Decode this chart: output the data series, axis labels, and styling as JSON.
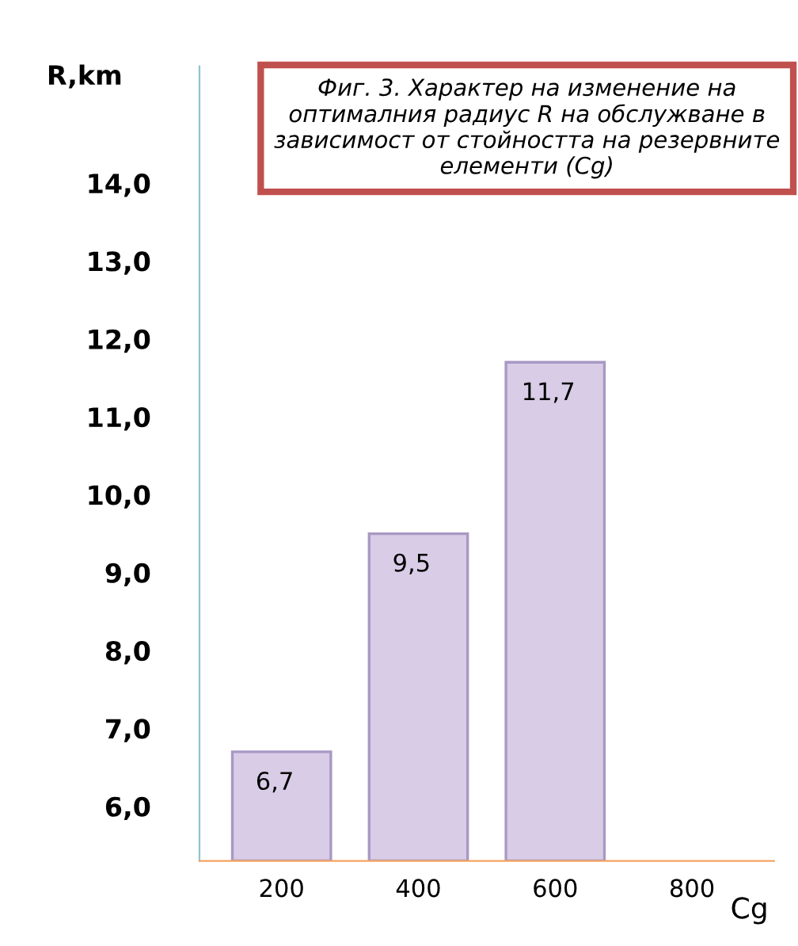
{
  "chart_data": {
    "type": "bar",
    "title": "Фиг. 3. Характер на изменение на оптималния радиус R на обслужване в зависимост от стойността на резервните елементи (Cg)",
    "xlabel": "Cg",
    "ylabel": "R,km",
    "categories": [
      "200",
      "400",
      "600",
      "800"
    ],
    "values": [
      6.7,
      9.5,
      11.7,
      null
    ],
    "value_labels": [
      "6,7",
      "9,5",
      "11,7",
      null
    ],
    "color": "#d8cce6",
    "ylim": [
      5.3,
      15.5
    ],
    "yticks": [
      {
        "value": 6,
        "label": "6,0"
      },
      {
        "value": 7,
        "label": "7,0"
      },
      {
        "value": 8,
        "label": "8,0"
      },
      {
        "value": 9,
        "label": "9,0"
      },
      {
        "value": 10,
        "label": "10,0"
      },
      {
        "value": 11,
        "label": "11,0"
      },
      {
        "value": 12,
        "label": "12,0"
      },
      {
        "value": 13,
        "label": "13,0"
      },
      {
        "value": 14,
        "label": "14,0"
      }
    ],
    "grid": false,
    "legend": false
  }
}
